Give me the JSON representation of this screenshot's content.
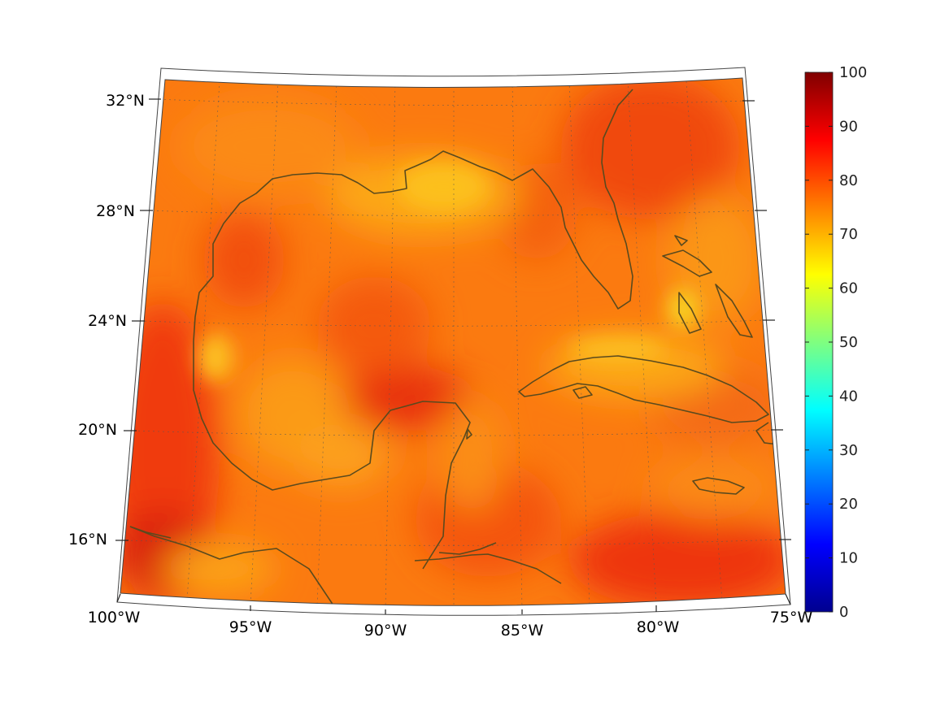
{
  "map": {
    "lon_ticks": [
      "100°W",
      "95°W",
      "90°W",
      "85°W",
      "80°W",
      "75°W"
    ],
    "lat_ticks": [
      "32°N",
      "28°N",
      "24°N",
      "20°N",
      "16°N"
    ],
    "extent": {
      "lon": [
        -100,
        -75
      ],
      "lat": [
        14.5,
        32.5
      ]
    },
    "projection": "conic",
    "coastline_color": "#5a4a1e"
  },
  "colorbar": {
    "colormap": "jet",
    "range": [
      0,
      100
    ],
    "ticks": [
      "100",
      "90",
      "80",
      "70",
      "60",
      "50",
      "40",
      "30",
      "20",
      "10",
      "0"
    ]
  },
  "field": {
    "dominant_range": [
      70,
      90
    ],
    "hotspots": [
      "western Mexico coast",
      "Yucatan Channel / Gulf center",
      "Caribbean south",
      "Atlantic NE of Florida"
    ],
    "cool_regions": [
      "northern Gulf near Louisiana",
      "Bahamas banks",
      "Cuba north coast"
    ]
  }
}
